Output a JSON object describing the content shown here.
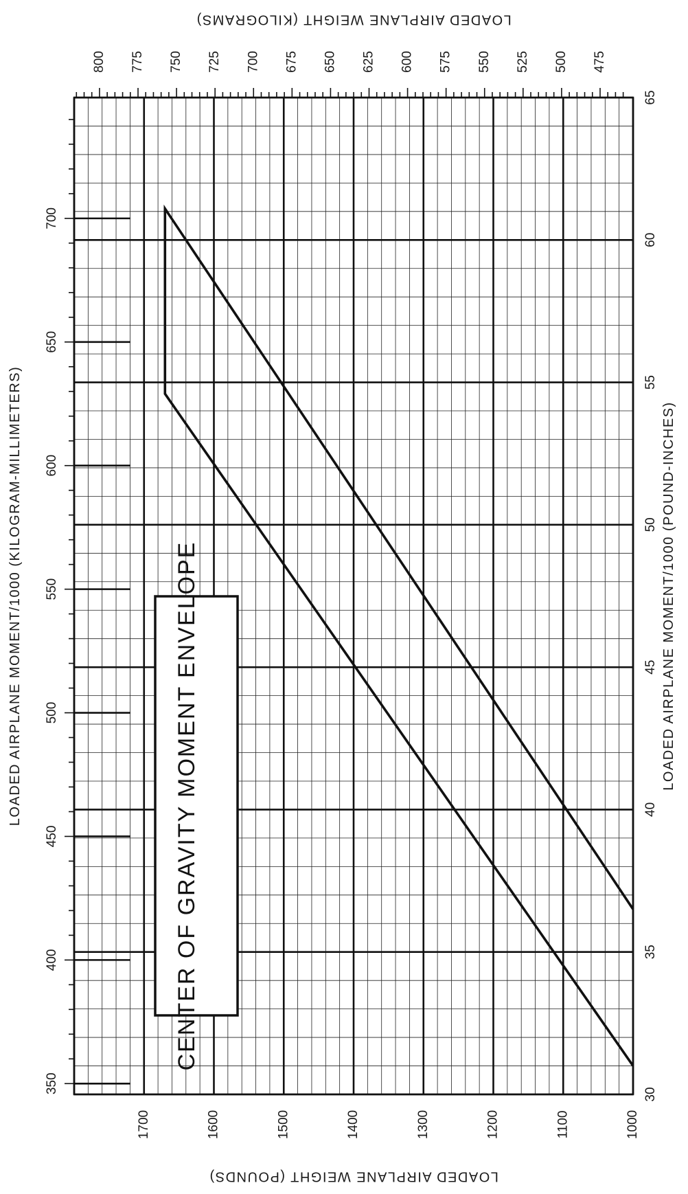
{
  "chart_data": {
    "type": "line",
    "title": "CENTER OF GRAVITY MOMENT ENVELOPE",
    "orientation": "rotated 90 degrees clockwise",
    "primary_x_axis": {
      "label": "LOADED AIRPLANE MOMENT/1000 (POUND-INCHES)",
      "range": [
        30,
        65
      ],
      "ticks": [
        "30",
        "35",
        "40",
        "45",
        "50",
        "55",
        "60",
        "65"
      ]
    },
    "primary_y_axis": {
      "label": "LOADED AIRPLANE WEIGHT (POUNDS)",
      "range": [
        1000,
        1800
      ],
      "ticks": [
        "1000",
        "1100",
        "1200",
        "1300",
        "1400",
        "1500",
        "1600",
        "1700"
      ]
    },
    "secondary_x_axis": {
      "label": "LOADED AIRPLANE MOMENT/1000 (KILOGRAM-MILLIMETERS)",
      "ticks": [
        "350",
        "400",
        "450",
        "500",
        "550",
        "600",
        "650",
        "700"
      ]
    },
    "secondary_y_axis": {
      "label": "LOADED AIRPLANE WEIGHT (KILOGRAMS)",
      "ticks": [
        "475",
        "500",
        "525",
        "550",
        "575",
        "600",
        "625",
        "650",
        "675",
        "700",
        "725",
        "750",
        "775",
        "800"
      ]
    },
    "grid": true,
    "series": [
      {
        "x": [
          31.0,
          54.6,
          61.1,
          36.5
        ],
        "y": [
          1000,
          1670,
          1670,
          1000
        ]
      }
    ]
  }
}
